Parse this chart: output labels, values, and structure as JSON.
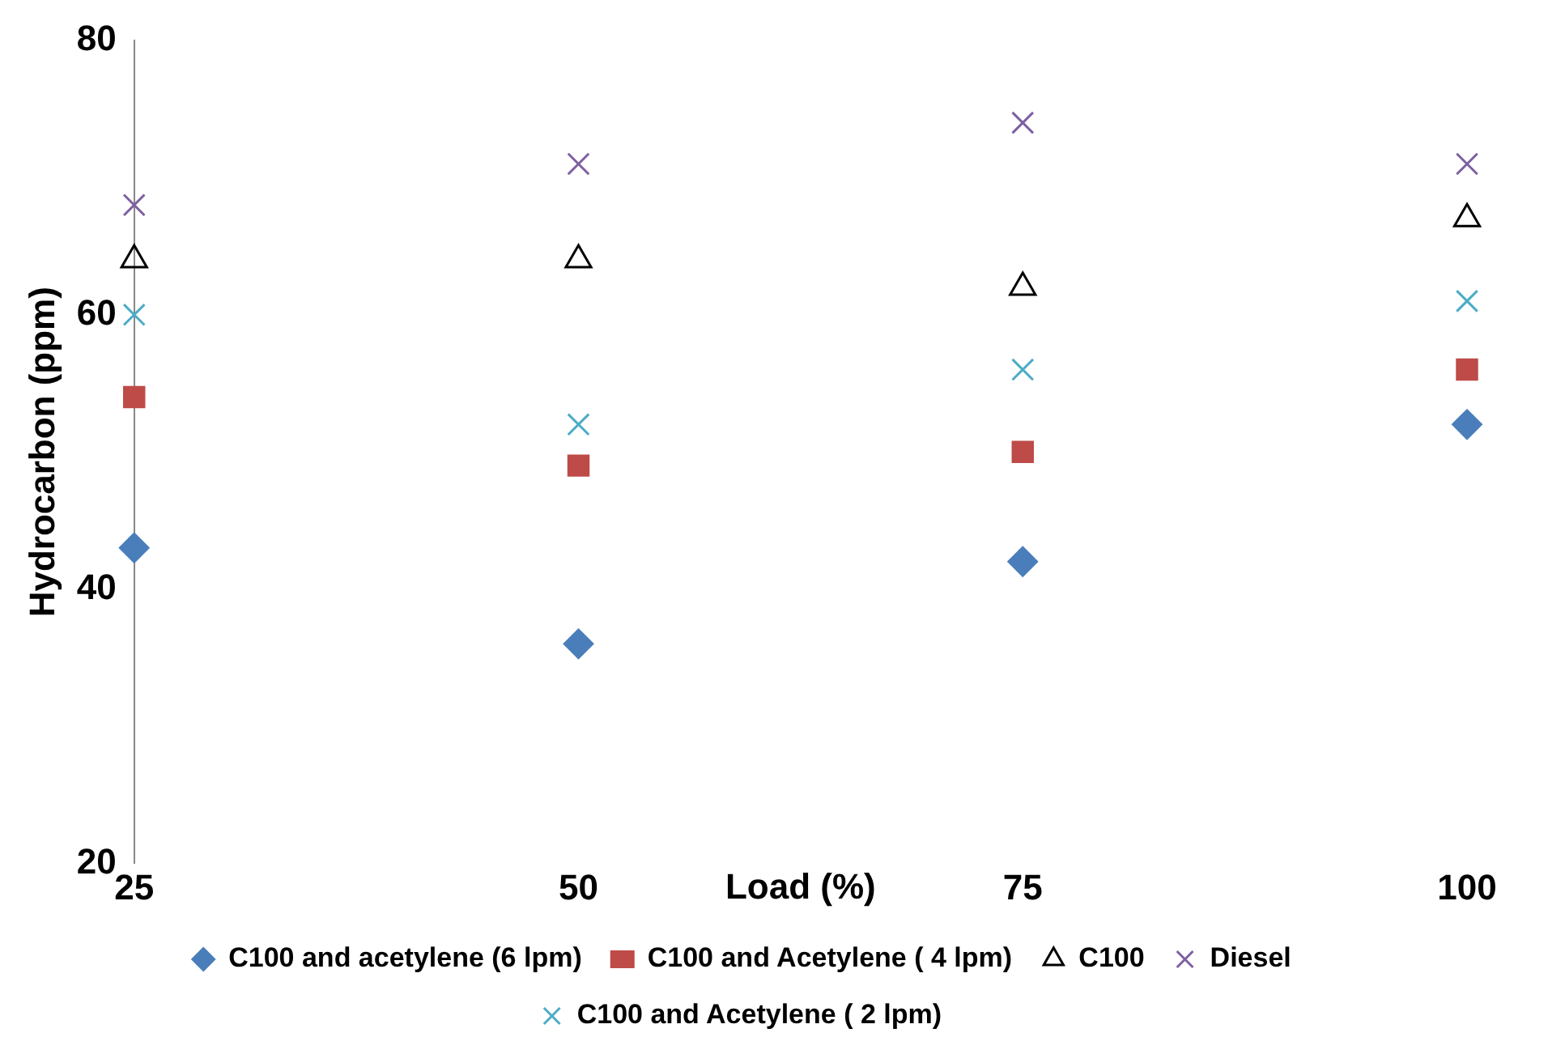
{
  "chart_data": {
    "type": "scatter",
    "xlabel": "Load (%)",
    "ylabel": "Hydrocarbon (ppm)",
    "x": [
      25,
      50,
      75,
      100
    ],
    "xlim": [
      25,
      100
    ],
    "xticks": [
      25,
      50,
      75,
      100
    ],
    "ylim": [
      20,
      80
    ],
    "yticks": [
      20,
      40,
      60,
      80
    ],
    "grid": false,
    "legend": "bottom",
    "series": [
      {
        "name": "C100 and acetylene (6 lpm)",
        "color": "#4a7ebb",
        "marker": "diamond",
        "values": [
          43,
          36,
          42,
          52
        ]
      },
      {
        "name": "C100 and Acetylene ( 4 lpm)",
        "color": "#be4b48",
        "marker": "square",
        "values": [
          54,
          49,
          50,
          56
        ]
      },
      {
        "name": "C100",
        "color": "#000000",
        "marker": "triangle",
        "values": [
          64,
          64,
          62,
          67
        ]
      },
      {
        "name": "Diesel",
        "color": "#7d60a0",
        "marker": "cross",
        "values": [
          68,
          71,
          74,
          71
        ]
      },
      {
        "name": "C100 and Acetylene ( 2 lpm)",
        "color": "#4bacc6",
        "marker": "cross",
        "values": [
          60,
          52,
          56,
          61
        ]
      }
    ]
  }
}
